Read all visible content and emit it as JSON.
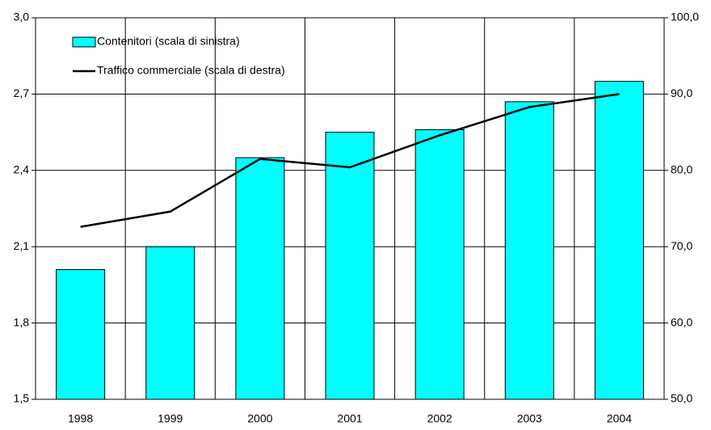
{
  "chart_data": {
    "type": "bar",
    "categories": [
      "1998",
      "1999",
      "2000",
      "2001",
      "2002",
      "2003",
      "2004"
    ],
    "series": [
      {
        "name": "Contenitori (scala di sinistra)",
        "color": "#00ffff",
        "values": [
          2.01,
          2.1,
          2.45,
          2.55,
          2.56,
          2.67,
          2.75
        ]
      },
      {
        "name": "Traffico commerciale (scala di destra)",
        "color": "#000000",
        "axis": "y2",
        "values": [
          72.6,
          74.6,
          81.5,
          80.4,
          84.6,
          88.3,
          90.0
        ]
      }
    ],
    "ylim": [
      1.5,
      3.0
    ],
    "yticks": [
      {
        "value": 1.5,
        "label": "1,5"
      },
      {
        "value": 1.8,
        "label": "1,8"
      },
      {
        "value": 2.1,
        "label": "2,1"
      },
      {
        "value": 2.4,
        "label": "2,4"
      },
      {
        "value": 2.7,
        "label": "2,7"
      },
      {
        "value": 3.0,
        "label": "3,0"
      }
    ],
    "y2lim": [
      50,
      100
    ],
    "y2ticks": [
      {
        "value": 50,
        "label": "50,0"
      },
      {
        "value": 60,
        "label": "60,0"
      },
      {
        "value": 70,
        "label": "70,0"
      },
      {
        "value": 80,
        "label": "80,0"
      },
      {
        "value": 90,
        "label": "90,0"
      },
      {
        "value": 100,
        "label": "100,0"
      }
    ],
    "grid": true,
    "legend": "top-left"
  }
}
